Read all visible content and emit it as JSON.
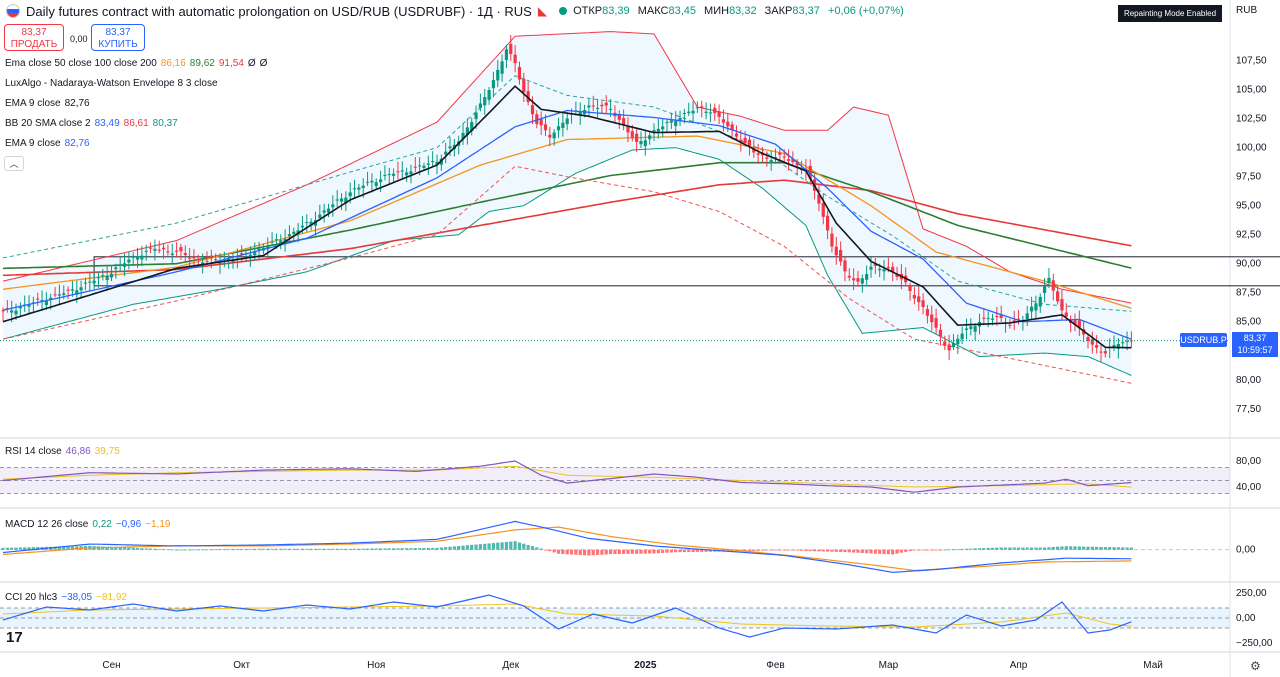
{
  "header": {
    "title": "Daily futures contract with automatic prolongation on USD/RUB (USDRUBF) · 1Д · RUS",
    "ohlc": [
      {
        "label": "ОТКР",
        "value": "83,39"
      },
      {
        "label": "МАКС",
        "value": "83,45"
      },
      {
        "label": "МИН",
        "value": "83,32"
      },
      {
        "label": "ЗАКР",
        "value": "83,37"
      }
    ],
    "change": "+0,06 (+0,07%)",
    "repainting": "Repainting Mode Enabled",
    "currency": "RUB"
  },
  "trade": {
    "sell_price": "83,37",
    "sell_label": "ПРОДАТЬ",
    "spread": "0,00",
    "buy_price": "83,37",
    "buy_label": "КУПИТЬ"
  },
  "legend": [
    {
      "name": "Ema close 50 close 100 close 200",
      "values": [
        {
          "v": "86,16",
          "c": "#f7931a"
        },
        {
          "v": "89,62",
          "c": "#2e7d32"
        },
        {
          "v": "91,54",
          "c": "#e53935"
        },
        {
          "v": "Ø",
          "c": "#131722"
        },
        {
          "v": "Ø",
          "c": "#131722"
        }
      ]
    },
    {
      "name": "LuxAlgo - Nadaraya-Watson Envelope 8 3 close",
      "values": []
    },
    {
      "name": "EMA 9 close",
      "values": [
        {
          "v": "82,76",
          "c": "#131722"
        }
      ]
    },
    {
      "name": "BB 20 SMA close 2",
      "values": [
        {
          "v": "83,49",
          "c": "#2962ff"
        },
        {
          "v": "86,61",
          "c": "#f23645"
        },
        {
          "v": "80,37",
          "c": "#089981"
        }
      ]
    },
    {
      "name": "EMA 9 close",
      "values": [
        {
          "v": "82,76",
          "c": "#2962ff"
        }
      ]
    }
  ],
  "panes": {
    "rsi": {
      "label": "RSI 14 close",
      "v1": "46,86",
      "v2": "39,75",
      "c1": "#7e57c2",
      "c2": "#f0c419"
    },
    "macd": {
      "label": "MACD 12 26 close",
      "v1": "0,22",
      "v2": "−0,96",
      "v3": "−1,19",
      "c1": "#089981",
      "c2": "#2962ff",
      "c3": "#f7931a"
    },
    "cci": {
      "label": "CCI 20 hlc3",
      "v1": "−38,05",
      "v2": "−81,92",
      "c1": "#2962ff",
      "c2": "#f0c419"
    }
  },
  "price_label": {
    "symbol": "USDRUB.P",
    "price": "83,37",
    "timer": "10:59:57"
  },
  "chart_data": {
    "type": "candlestick",
    "y_ticks": [
      "107,50",
      "105,00",
      "102,50",
      "100,00",
      "97,50",
      "95,00",
      "92,50",
      "90,00",
      "87,50",
      "85,00",
      "82,50",
      "80,00",
      "77,50"
    ],
    "ylim": [
      75.5,
      111
    ],
    "x_ticks": [
      "Сен",
      "Окт",
      "Ноя",
      "Дек",
      "2025",
      "Фев",
      "Мар",
      "Апр",
      "Май"
    ],
    "rsi_ticks": [
      "80,00",
      "40,00"
    ],
    "macd_ticks": [
      "0,00"
    ],
    "cci_ticks": [
      "250,00",
      "0,00",
      "−250,00"
    ],
    "close_path": [
      [
        0,
        85.8
      ],
      [
        5,
        86.4
      ],
      [
        10,
        87.0
      ],
      [
        15,
        87.6
      ],
      [
        20,
        88.4
      ],
      [
        25,
        89.3
      ],
      [
        30,
        90.6
      ],
      [
        35,
        91.3
      ],
      [
        40,
        91.0
      ],
      [
        45,
        90.3
      ],
      [
        50,
        90.2
      ],
      [
        55,
        90.6
      ],
      [
        60,
        91.4
      ],
      [
        65,
        92.3
      ],
      [
        70,
        93.4
      ],
      [
        75,
        94.8
      ],
      [
        80,
        96.2
      ],
      [
        85,
        97.1
      ],
      [
        90,
        97.8
      ],
      [
        95,
        98.2
      ],
      [
        100,
        98.9
      ],
      [
        105,
        100.6
      ],
      [
        110,
        103.6
      ],
      [
        113,
        105.8
      ],
      [
        116,
        108.5
      ],
      [
        118,
        107.2
      ],
      [
        120,
        104.8
      ],
      [
        123,
        102.1
      ],
      [
        126,
        101.0
      ],
      [
        130,
        102.6
      ],
      [
        135,
        103.6
      ],
      [
        140,
        103.4
      ],
      [
        143,
        101.9
      ],
      [
        146,
        100.3
      ],
      [
        150,
        101.4
      ],
      [
        155,
        102.5
      ],
      [
        160,
        103.4
      ],
      [
        163,
        103.2
      ],
      [
        166,
        102.2
      ],
      [
        170,
        100.7
      ],
      [
        173,
        99.6
      ],
      [
        176,
        99.1
      ],
      [
        180,
        99.2
      ],
      [
        185,
        98.0
      ],
      [
        188,
        95.3
      ],
      [
        191,
        91.6
      ],
      [
        194,
        89.2
      ],
      [
        197,
        88.4
      ],
      [
        200,
        89.6
      ],
      [
        204,
        89.7
      ],
      [
        208,
        88.2
      ],
      [
        212,
        86.2
      ],
      [
        215,
        84.3
      ],
      [
        218,
        82.6
      ],
      [
        221,
        84.0
      ],
      [
        225,
        85.1
      ],
      [
        229,
        85.4
      ],
      [
        232,
        84.9
      ],
      [
        235,
        85.2
      ],
      [
        238,
        86.7
      ],
      [
        241,
        88.6
      ],
      [
        244,
        85.9
      ],
      [
        248,
        84.3
      ],
      [
        251,
        83.0
      ],
      [
        254,
        82.3
      ],
      [
        257,
        83.2
      ],
      [
        260,
        83.37
      ]
    ],
    "ema9_path": [
      [
        0,
        85.0
      ],
      [
        40,
        89.6
      ],
      [
        60,
        90.7
      ],
      [
        80,
        95.5
      ],
      [
        100,
        98.5
      ],
      [
        112,
        103.0
      ],
      [
        118,
        105.3
      ],
      [
        124,
        103.3
      ],
      [
        135,
        102.7
      ],
      [
        150,
        101.3
      ],
      [
        165,
        101.4
      ],
      [
        175,
        99.5
      ],
      [
        185,
        98.0
      ],
      [
        192,
        93.5
      ],
      [
        200,
        90.2
      ],
      [
        212,
        88.0
      ],
      [
        220,
        84.7
      ],
      [
        232,
        84.9
      ],
      [
        244,
        85.6
      ],
      [
        254,
        82.8
      ],
      [
        260,
        82.76
      ]
    ],
    "bb_basis_path": [
      [
        0,
        86.0
      ],
      [
        40,
        89.3
      ],
      [
        70,
        92.2
      ],
      [
        100,
        97.4
      ],
      [
        118,
        101.8
      ],
      [
        130,
        103.2
      ],
      [
        150,
        102.6
      ],
      [
        165,
        101.9
      ],
      [
        178,
        100.3
      ],
      [
        190,
        96.5
      ],
      [
        200,
        92.8
      ],
      [
        212,
        90.4
      ],
      [
        222,
        86.6
      ],
      [
        235,
        85.0
      ],
      [
        248,
        85.2
      ],
      [
        260,
        83.49
      ]
    ],
    "bb_upper_path": [
      [
        0,
        88.5
      ],
      [
        40,
        92.0
      ],
      [
        70,
        96.8
      ],
      [
        100,
        102.2
      ],
      [
        118,
        109.6
      ],
      [
        140,
        110.0
      ],
      [
        150,
        109.8
      ],
      [
        160,
        103.5
      ],
      [
        170,
        102.7
      ],
      [
        180,
        101.5
      ],
      [
        190,
        101.5
      ],
      [
        196,
        103.5
      ],
      [
        204,
        102.8
      ],
      [
        212,
        93.0
      ],
      [
        222,
        91.5
      ],
      [
        232,
        89.3
      ],
      [
        244,
        87.8
      ],
      [
        260,
        86.61
      ]
    ],
    "bb_lower_path": [
      [
        0,
        83.5
      ],
      [
        30,
        86.5
      ],
      [
        50,
        87.8
      ],
      [
        70,
        89.3
      ],
      [
        90,
        92.0
      ],
      [
        105,
        92.5
      ],
      [
        112,
        94.5
      ],
      [
        120,
        95.0
      ],
      [
        132,
        97.8
      ],
      [
        145,
        99.8
      ],
      [
        155,
        100.0
      ],
      [
        165,
        99.0
      ],
      [
        175,
        96.5
      ],
      [
        185,
        93.3
      ],
      [
        190,
        89.0
      ],
      [
        198,
        84.0
      ],
      [
        212,
        84.5
      ],
      [
        225,
        82.0
      ],
      [
        240,
        82.3
      ],
      [
        250,
        82.0
      ],
      [
        260,
        80.37
      ]
    ],
    "ema50_path": [
      [
        0,
        87.8
      ],
      [
        40,
        89.7
      ],
      [
        80,
        93.7
      ],
      [
        110,
        98.5
      ],
      [
        130,
        100.7
      ],
      [
        160,
        101.0
      ],
      [
        180,
        99.5
      ],
      [
        200,
        95.0
      ],
      [
        215,
        91.0
      ],
      [
        240,
        88.5
      ],
      [
        260,
        86.16
      ]
    ],
    "ema100_path": [
      [
        0,
        89.6
      ],
      [
        40,
        90.0
      ],
      [
        80,
        92.9
      ],
      [
        110,
        95.3
      ],
      [
        140,
        97.6
      ],
      [
        165,
        98.7
      ],
      [
        180,
        98.7
      ],
      [
        200,
        96.2
      ],
      [
        220,
        93.3
      ],
      [
        260,
        89.62
      ]
    ],
    "ema200_path": [
      [
        0,
        89.0
      ],
      [
        40,
        89.5
      ],
      [
        80,
        91.3
      ],
      [
        110,
        93.3
      ],
      [
        140,
        95.3
      ],
      [
        165,
        96.8
      ],
      [
        180,
        97.2
      ],
      [
        200,
        96.3
      ],
      [
        220,
        94.3
      ],
      [
        260,
        91.54
      ]
    ],
    "nw_upper_path": [
      [
        0,
        90.5
      ],
      [
        40,
        93.5
      ],
      [
        80,
        97.9
      ],
      [
        100,
        100.0
      ],
      [
        118,
        106.2
      ],
      [
        130,
        104.5
      ],
      [
        150,
        103.5
      ],
      [
        165,
        101.4
      ],
      [
        175,
        99.8
      ],
      [
        190,
        95.8
      ],
      [
        205,
        92.4
      ],
      [
        220,
        88.5
      ],
      [
        240,
        86.5
      ],
      [
        260,
        85.9
      ]
    ],
    "nw_lower_path": [
      [
        0,
        83.5
      ],
      [
        40,
        86.8
      ],
      [
        80,
        90.5
      ],
      [
        100,
        92.5
      ],
      [
        118,
        98.4
      ],
      [
        130,
        97.5
      ],
      [
        150,
        96.2
      ],
      [
        165,
        94.5
      ],
      [
        180,
        91.5
      ],
      [
        195,
        87.0
      ],
      [
        210,
        83.5
      ],
      [
        230,
        82.0
      ],
      [
        260,
        79.7
      ]
    ],
    "zone": {
      "y_top": 90.6,
      "y_bottom": 88.1,
      "x_start": 21,
      "x_end": 300
    },
    "rsi_ylim": [
      20,
      100
    ],
    "rsi_path": [
      [
        0,
        50
      ],
      [
        20,
        62
      ],
      [
        40,
        60
      ],
      [
        60,
        66
      ],
      [
        80,
        68
      ],
      [
        95,
        64
      ],
      [
        110,
        72
      ],
      [
        118,
        80
      ],
      [
        124,
        58
      ],
      [
        130,
        46
      ],
      [
        150,
        60
      ],
      [
        160,
        55
      ],
      [
        170,
        47
      ],
      [
        180,
        45
      ],
      [
        190,
        42
      ],
      [
        200,
        40
      ],
      [
        210,
        32
      ],
      [
        220,
        40
      ],
      [
        230,
        43
      ],
      [
        240,
        46
      ],
      [
        245,
        52
      ],
      [
        250,
        42
      ],
      [
        260,
        46.86
      ]
    ],
    "rsi_sig_path": [
      [
        0,
        52
      ],
      [
        20,
        58
      ],
      [
        40,
        62
      ],
      [
        60,
        64
      ],
      [
        80,
        66
      ],
      [
        100,
        66
      ],
      [
        118,
        72
      ],
      [
        130,
        58
      ],
      [
        150,
        55
      ],
      [
        170,
        50
      ],
      [
        190,
        45
      ],
      [
        210,
        40
      ],
      [
        230,
        42
      ],
      [
        250,
        45
      ],
      [
        260,
        39.75
      ]
    ],
    "macd_ylim": [
      -3,
      4
    ],
    "macd_path": [
      [
        0,
        -0.3
      ],
      [
        20,
        0.6
      ],
      [
        40,
        0.4
      ],
      [
        60,
        0.5
      ],
      [
        80,
        0.7
      ],
      [
        100,
        1.1
      ],
      [
        118,
        3.0
      ],
      [
        125,
        2.3
      ],
      [
        135,
        1.2
      ],
      [
        150,
        0.4
      ],
      [
        165,
        -0.1
      ],
      [
        180,
        -0.6
      ],
      [
        195,
        -1.6
      ],
      [
        205,
        -2.4
      ],
      [
        215,
        -2.1
      ],
      [
        230,
        -1.4
      ],
      [
        245,
        -0.9
      ],
      [
        260,
        -0.96
      ]
    ],
    "macd_sig_path": [
      [
        0,
        -0.5
      ],
      [
        20,
        0.2
      ],
      [
        40,
        0.4
      ],
      [
        60,
        0.4
      ],
      [
        80,
        0.6
      ],
      [
        100,
        0.9
      ],
      [
        118,
        2.1
      ],
      [
        128,
        2.4
      ],
      [
        140,
        1.4
      ],
      [
        155,
        0.5
      ],
      [
        170,
        -0.1
      ],
      [
        185,
        -0.8
      ],
      [
        200,
        -1.6
      ],
      [
        210,
        -2.2
      ],
      [
        225,
        -1.8
      ],
      [
        240,
        -1.3
      ],
      [
        260,
        -1.19
      ]
    ],
    "cci_ylim": [
      -320,
      320
    ],
    "cci_path": [
      [
        0,
        -20
      ],
      [
        10,
        110
      ],
      [
        20,
        80
      ],
      [
        30,
        140
      ],
      [
        40,
        70
      ],
      [
        50,
        120
      ],
      [
        60,
        70
      ],
      [
        70,
        130
      ],
      [
        80,
        90
      ],
      [
        90,
        160
      ],
      [
        100,
        110
      ],
      [
        112,
        230
      ],
      [
        120,
        120
      ],
      [
        128,
        -110
      ],
      [
        136,
        40
      ],
      [
        145,
        -50
      ],
      [
        155,
        100
      ],
      [
        165,
        -100
      ],
      [
        172,
        -190
      ],
      [
        180,
        -100
      ],
      [
        192,
        -110
      ],
      [
        205,
        -70
      ],
      [
        215,
        -150
      ],
      [
        222,
        30
      ],
      [
        230,
        -80
      ],
      [
        238,
        -20
      ],
      [
        244,
        160
      ],
      [
        250,
        -150
      ],
      [
        255,
        -120
      ],
      [
        260,
        -38
      ]
    ],
    "cci_sig_path": [
      [
        0,
        40
      ],
      [
        20,
        80
      ],
      [
        40,
        90
      ],
      [
        60,
        100
      ],
      [
        80,
        110
      ],
      [
        100,
        120
      ],
      [
        118,
        140
      ],
      [
        130,
        40
      ],
      [
        150,
        20
      ],
      [
        170,
        -60
      ],
      [
        190,
        -80
      ],
      [
        210,
        -90
      ],
      [
        230,
        -40
      ],
      [
        245,
        50
      ],
      [
        255,
        -60
      ],
      [
        260,
        -81.92
      ]
    ],
    "up_color": "#089981",
    "down_color": "#f23645"
  }
}
